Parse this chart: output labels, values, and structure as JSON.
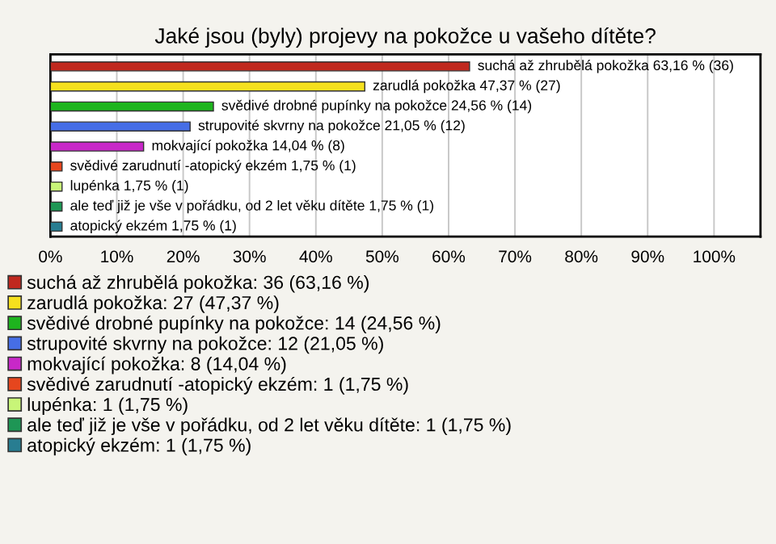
{
  "chart_data": {
    "type": "bar",
    "orientation": "horizontal",
    "title": "Jaké jsou (byly) projevy na pokožce u vašeho dítěte?",
    "categories": [
      "suchá až zhrubělá pokožka",
      "zarudlá pokožka",
      "svědivé drobné pupínky na pokožce",
      "strupovité skvrny na pokožce",
      "mokvající pokožka",
      "svědivé zarudnutí -atopický ekzém",
      "lupénka",
      "ale teď již je vše v pořádku, od 2 let věku dítěte",
      "atopický ekzém"
    ],
    "series": [
      {
        "name": "suchá až zhrubělá pokožka: 36 (63,16 %)",
        "color": "#c0281e",
        "values": [
          63.16,
          null,
          null,
          null,
          null,
          null,
          null,
          null,
          null
        ],
        "value_labels": [
          "63,16 % (36)",
          null,
          null,
          null,
          null,
          null,
          null,
          null,
          null
        ]
      },
      {
        "name": "zarudlá pokožka: 27 (47,37 %)",
        "color": "#f5e01e",
        "values": [
          null,
          47.37,
          null,
          null,
          null,
          null,
          null,
          null,
          null
        ],
        "value_labels": [
          null,
          "47,37 % (27)",
          null,
          null,
          null,
          null,
          null,
          null,
          null
        ]
      },
      {
        "name": "svědivé drobné pupínky na pokožce: 14 (24,56 %)",
        "color": "#1eb41e",
        "values": [
          null,
          null,
          24.56,
          null,
          null,
          null,
          null,
          null,
          null
        ],
        "value_labels": [
          null,
          null,
          "24,56 % (14)",
          null,
          null,
          null,
          null,
          null,
          null
        ]
      },
      {
        "name": "strupovité skvrny na pokožce: 12 (21,05 %)",
        "color": "#466ee6",
        "values": [
          null,
          null,
          null,
          21.05,
          null,
          null,
          null,
          null,
          null
        ],
        "value_labels": [
          null,
          null,
          null,
          "21,05 % (12)",
          null,
          null,
          null,
          null,
          null
        ]
      },
      {
        "name": "mokvající pokožka: 8 (14,04 %)",
        "color": "#c828c8",
        "values": [
          null,
          null,
          null,
          null,
          14.04,
          null,
          null,
          null,
          null
        ],
        "value_labels": [
          null,
          null,
          null,
          null,
          "14,04 % (8)",
          null,
          null,
          null,
          null
        ]
      },
      {
        "name": "svědivé zarudnutí -atopický ekzém: 1 (1,75 %)",
        "color": "#e6461e",
        "values": [
          null,
          null,
          null,
          null,
          null,
          1.75,
          null,
          null,
          null
        ],
        "value_labels": [
          null,
          null,
          null,
          null,
          null,
          "1,75 % (1)",
          null,
          null,
          null
        ]
      },
      {
        "name": "lupénka: 1 (1,75 %)",
        "color": "#c8f578",
        "values": [
          null,
          null,
          null,
          null,
          null,
          null,
          1.75,
          null,
          null
        ],
        "value_labels": [
          null,
          null,
          null,
          null,
          null,
          null,
          "1,75 % (1)",
          null,
          null
        ]
      },
      {
        "name": "ale teď již je vše v pořádku, od 2 let věku dítěte: 1 (1,75 %)",
        "color": "#1e9655",
        "values": [
          null,
          null,
          null,
          null,
          null,
          null,
          null,
          1.75,
          null
        ],
        "value_labels": [
          null,
          null,
          null,
          null,
          null,
          null,
          null,
          "1,75 % (1)",
          null
        ]
      },
      {
        "name": "atopický ekzém: 1 (1,75 %)",
        "color": "#287d91",
        "values": [
          null,
          null,
          null,
          null,
          null,
          null,
          null,
          null,
          1.75
        ],
        "value_labels": [
          null,
          null,
          null,
          null,
          null,
          null,
          null,
          null,
          "1,75 % (1)"
        ]
      }
    ],
    "xlim": [
      0,
      107
    ],
    "xticks": [
      {
        "value": 0,
        "label": "0%"
      },
      {
        "value": 10,
        "label": "10%"
      },
      {
        "value": 20,
        "label": "20%"
      },
      {
        "value": 30,
        "label": "30%"
      },
      {
        "value": 40,
        "label": "40%"
      },
      {
        "value": 50,
        "label": "50%"
      },
      {
        "value": 60,
        "label": "60%"
      },
      {
        "value": 70,
        "label": "70%"
      },
      {
        "value": 80,
        "label": "80%"
      },
      {
        "value": 90,
        "label": "90%"
      },
      {
        "value": 100,
        "label": "100%"
      }
    ],
    "tick_labels": "x",
    "grid": "x",
    "legend": "bottom"
  }
}
